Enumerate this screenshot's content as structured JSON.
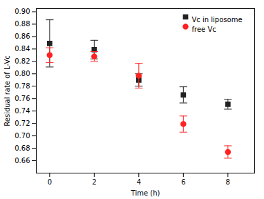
{
  "chart_data": {
    "type": "scatter",
    "xlabel": "Time (h)",
    "ylabel": "Residual rate of L-Vc",
    "x": [
      0,
      2,
      4,
      6,
      8
    ],
    "series": [
      {
        "name": "Vc in liposome",
        "color": "#222222",
        "marker": "square",
        "values": [
          0.849,
          0.839,
          0.79,
          0.766,
          0.751
        ],
        "yerr": [
          0.038,
          0.015,
          0.01,
          0.013,
          0.008
        ]
      },
      {
        "name": "free Vc",
        "color": "#ff2222",
        "marker": "circle",
        "values": [
          0.83,
          0.828,
          0.797,
          0.719,
          0.674
        ],
        "yerr": [
          0.012,
          0.008,
          0.02,
          0.013,
          0.01
        ]
      }
    ],
    "xlim": [
      -0.6,
      9.2
    ],
    "ylim": [
      0.64,
      0.905
    ],
    "xticks": [
      0,
      2,
      4,
      6,
      8
    ],
    "yticks": [
      0.66,
      0.68,
      {
        "value": 0.7,
        "label": "0.70"
      },
      0.72,
      0.74,
      0.76,
      0.78,
      {
        "value": 0.8,
        "label": "0.80"
      },
      0.82,
      0.84,
      0.86,
      0.88,
      {
        "value": 0.9,
        "label": "0.90"
      }
    ],
    "legend": "upper right",
    "grid": false
  }
}
